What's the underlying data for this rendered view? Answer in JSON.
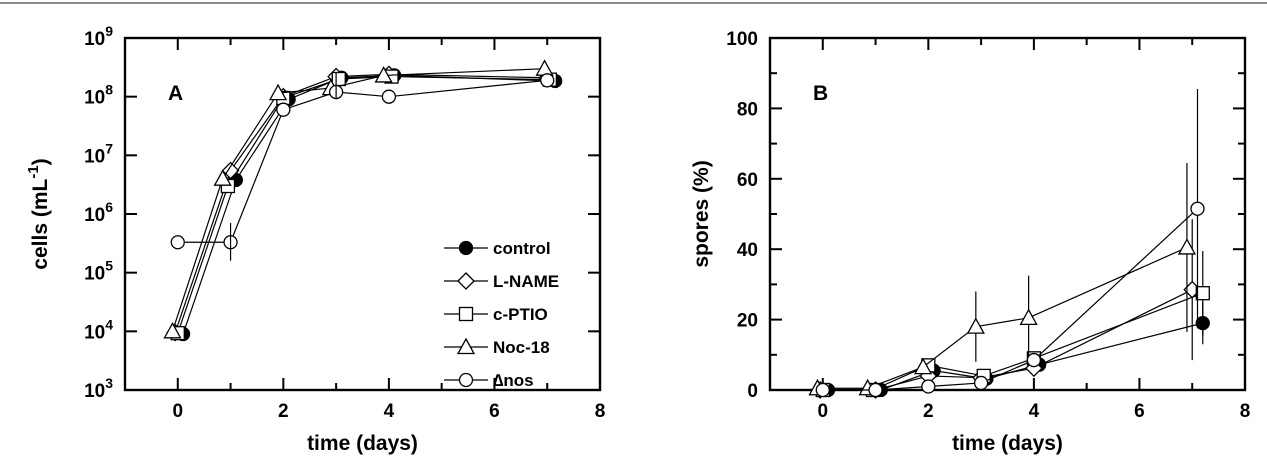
{
  "chart_data": [
    {
      "panel": "A",
      "type": "line",
      "xlabel": "time (days)",
      "ylabel": "cells (mL-1)",
      "ylabel_parts": {
        "base": "cells (mL",
        "sup": "-1",
        "close": ")"
      },
      "xlim": [
        -1,
        8
      ],
      "xticks": [
        "0",
        "2",
        "4",
        "6",
        "8"
      ],
      "ylim_log10": [
        3,
        9
      ],
      "y_scale": "log",
      "yticks": [
        {
          "base": "10",
          "exp": "3"
        },
        {
          "base": "10",
          "exp": "4"
        },
        {
          "base": "10",
          "exp": "5"
        },
        {
          "base": "10",
          "exp": "6"
        },
        {
          "base": "10",
          "exp": "7"
        },
        {
          "base": "10",
          "exp": "8"
        },
        {
          "base": "10",
          "exp": "9"
        }
      ],
      "legend_position": "bottom-right",
      "series": [
        {
          "name": "control",
          "marker": "filled-circle",
          "points": [
            [
              0.1,
              9000
            ],
            [
              1.1,
              3800000
            ],
            [
              2.1,
              90000000
            ],
            [
              3.1,
              210000000
            ],
            [
              4.1,
              230000000
            ],
            [
              7.15,
              185000000
            ]
          ]
        },
        {
          "name": "L-NAME",
          "marker": "diamond",
          "points": [
            [
              -0.05,
              9500
            ],
            [
              1.0,
              5500000
            ],
            [
              2.0,
              100000000
            ],
            [
              3.0,
              220000000
            ],
            [
              4.0,
              240000000
            ],
            [
              7.0,
              210000000
            ]
          ]
        },
        {
          "name": "c-PTIO",
          "marker": "square",
          "points": [
            [
              0.0,
              9300
            ],
            [
              0.95,
              3000000
            ],
            [
              2.0,
              95000000
            ],
            [
              3.05,
              200000000
            ],
            [
              4.05,
              220000000
            ],
            [
              7.05,
              195000000
            ]
          ]
        },
        {
          "name": "Noc-18",
          "marker": "triangle",
          "points": [
            [
              -0.1,
              10000
            ],
            [
              0.85,
              4000000
            ],
            [
              1.9,
              115000000
            ],
            [
              2.9,
              140000000
            ],
            [
              3.9,
              230000000
            ],
            [
              6.95,
              300000000
            ]
          ]
        },
        {
          "name": "∆nos",
          "marker": "open-circle",
          "points": [
            [
              0.0,
              330000
            ],
            [
              1.0,
              330000
            ],
            [
              2.0,
              60000000
            ],
            [
              3.0,
              120000000
            ],
            [
              4.0,
              100000000
            ],
            [
              7.0,
              190000000
            ]
          ]
        }
      ]
    },
    {
      "panel": "B",
      "type": "line",
      "xlabel": "time (days)",
      "ylabel": "spores (%)",
      "xlim": [
        -1,
        8
      ],
      "xticks": [
        "0",
        "2",
        "4",
        "6",
        "8"
      ],
      "ylim": [
        0,
        100
      ],
      "yticks": [
        "0",
        "20",
        "40",
        "60",
        "80",
        "100"
      ],
      "series": [
        {
          "name": "control",
          "marker": "filled-circle",
          "points": [
            [
              0.1,
              0
            ],
            [
              1.1,
              0
            ],
            [
              2.1,
              5.5
            ],
            [
              3.1,
              3.2
            ],
            [
              4.1,
              7.2
            ],
            [
              7.2,
              19
            ]
          ],
          "errors": [
            0,
            0,
            0,
            0,
            0,
            6
          ]
        },
        {
          "name": "L-NAME",
          "marker": "diamond",
          "points": [
            [
              -0.05,
              0
            ],
            [
              1.0,
              0
            ],
            [
              2.0,
              4
            ],
            [
              3.0,
              3.5
            ],
            [
              4.0,
              6.2
            ],
            [
              7.0,
              28.5
            ]
          ],
          "errors": [
            0,
            0,
            0,
            0,
            0,
            20
          ]
        },
        {
          "name": "c-PTIO",
          "marker": "square",
          "points": [
            [
              0.0,
              0
            ],
            [
              0.95,
              0
            ],
            [
              2.0,
              7
            ],
            [
              3.05,
              4
            ],
            [
              4.0,
              9
            ],
            [
              7.2,
              27.5
            ]
          ],
          "errors": [
            0,
            0,
            0,
            0,
            0,
            12
          ]
        },
        {
          "name": "Noc-18",
          "marker": "triangle",
          "points": [
            [
              -0.1,
              0.5
            ],
            [
              0.85,
              0.5
            ],
            [
              1.9,
              6.5
            ],
            [
              2.9,
              18
            ],
            [
              3.9,
              20.5
            ],
            [
              6.9,
              40.5
            ]
          ],
          "errors": [
            0,
            0,
            0,
            10,
            12,
            24
          ]
        },
        {
          "name": "∆nos",
          "marker": "open-circle",
          "points": [
            [
              0.0,
              0
            ],
            [
              1.0,
              0
            ],
            [
              2.0,
              1
            ],
            [
              3.0,
              2
            ],
            [
              4.0,
              8.5
            ],
            [
              7.1,
              51.5
            ]
          ],
          "errors": [
            0,
            0,
            0,
            0,
            0,
            34
          ]
        }
      ]
    }
  ]
}
